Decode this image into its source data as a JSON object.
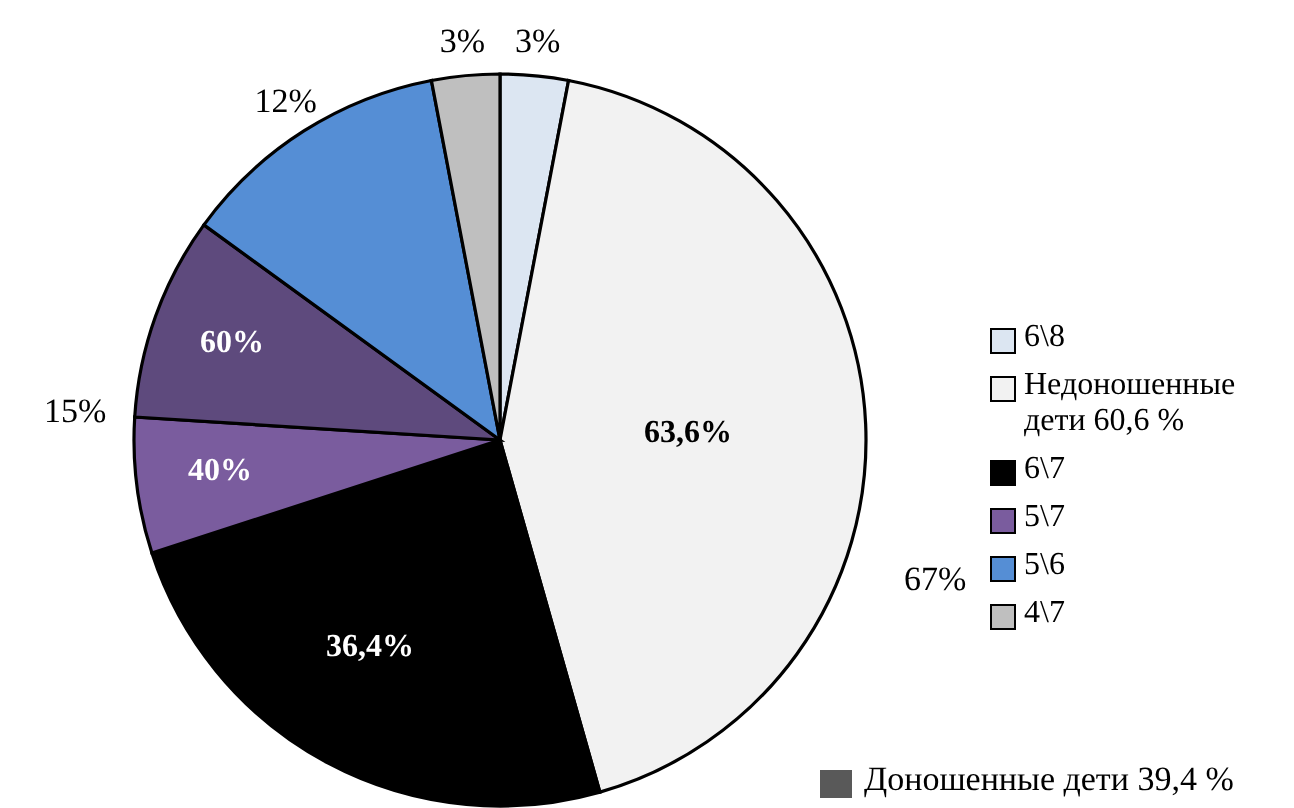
{
  "chart_data": {
    "type": "pie",
    "categories": [
      "6\\8",
      "Недоношенные дети 60,6 %",
      "6\\7",
      "5\\7",
      null,
      "5\\6",
      "4\\7"
    ],
    "values": [
      3,
      42.6,
      24.4,
      6,
      9,
      12,
      3
    ],
    "colors": [
      "#dce6f2",
      "#f2f2f2",
      "#000000",
      "#7a5c9e",
      "#5e4a7d",
      "#558ed5",
      "#bfbfbf"
    ],
    "value_labels": [
      "3%",
      null,
      null,
      null,
      null,
      "12%",
      "3%"
    ],
    "annotations": [
      "67%",
      "15%",
      "63,6%",
      "36,4%",
      "40%",
      "60%",
      "Доношенные дети 39,4 %"
    ],
    "legend": "right"
  }
}
